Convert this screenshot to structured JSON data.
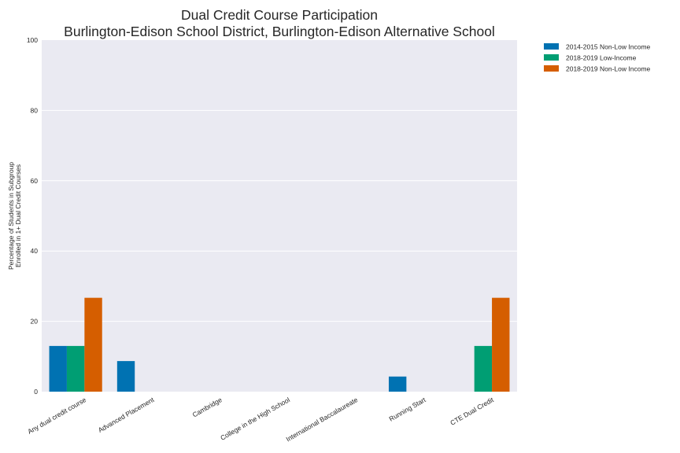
{
  "chart_data": {
    "type": "bar",
    "title_lines": [
      "Dual Credit Course Participation",
      "Burlington-Edison School District, Burlington-Edison Alternative School"
    ],
    "xlabel": "",
    "ylabel_lines": [
      "Percentage of Students in Subgroup",
      "Enrolled in 1+ Dual Credit Courses"
    ],
    "ylim": [
      0,
      100
    ],
    "yticks": [
      0,
      20,
      40,
      60,
      80,
      100
    ],
    "grid": true,
    "legend_position": "outside-top-right",
    "categories": [
      "Any dual credit course",
      "Advanced Placement",
      "Cambridge",
      "College in the High School",
      "International Baccalaureate",
      "Running Start",
      "CTE Dual Credit"
    ],
    "series": [
      {
        "name": "2014-2015 Non-Low Income",
        "color": "#0072b2",
        "values": [
          13.0,
          8.7,
          0,
          0,
          0,
          4.3,
          0
        ]
      },
      {
        "name": "2018-2019 Low-Income",
        "color": "#009e73",
        "values": [
          13.0,
          0,
          0,
          0,
          0,
          0,
          13.0
        ]
      },
      {
        "name": "2018-2019 Non-Low Income",
        "color": "#d55e00",
        "values": [
          26.7,
          0,
          0,
          0,
          0,
          0,
          26.7
        ]
      }
    ],
    "plot_background": "#eaeaf2",
    "grid_color": "#ffffff"
  }
}
